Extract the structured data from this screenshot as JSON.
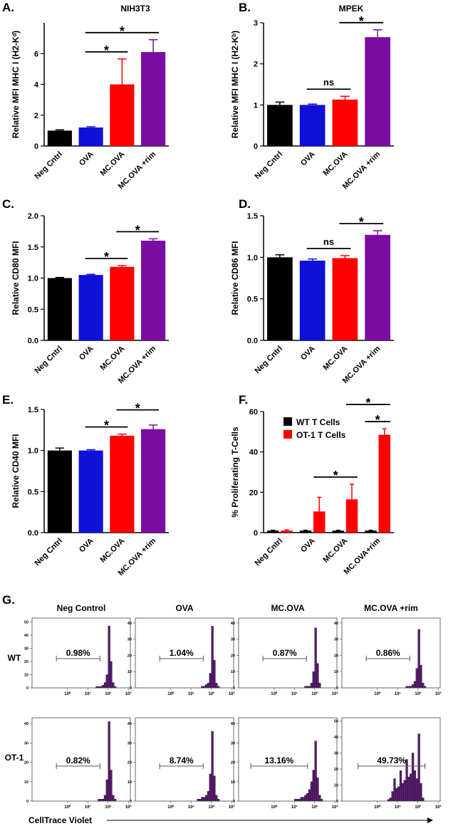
{
  "chart_data": [
    {
      "type": "bar",
      "panel_label": "A.",
      "title": "NIH3T3",
      "ylabel": "Relative MFI MHC I (H2-Kᵈ)",
      "categories": [
        "Neg Cntrl",
        "OVA",
        "MC.OVA",
        "MC.OVA +rim"
      ],
      "values": [
        1.0,
        1.2,
        4.0,
        6.1
      ],
      "errors": [
        0.05,
        0.05,
        1.65,
        0.8
      ],
      "colors": [
        "#000000",
        "#1010d8",
        "#ff0000",
        "#7b0ca3"
      ],
      "ylim": [
        0,
        8
      ],
      "yticks": [
        0,
        2,
        4,
        6
      ],
      "significance": [
        {
          "label": "*",
          "span": [
            1,
            2
          ]
        },
        {
          "label": "*",
          "span": [
            1,
            3
          ]
        }
      ]
    },
    {
      "type": "bar",
      "panel_label": "B.",
      "title": "MPEK",
      "ylabel": "Relative MFI MHC I (H2-Kᵇ)",
      "categories": [
        "Neg Cntrl",
        "OVA",
        "MC.OVA",
        "MC.OVA +rim"
      ],
      "values": [
        1.0,
        1.0,
        1.13,
        2.65
      ],
      "errors": [
        0.07,
        0.02,
        0.08,
        0.18
      ],
      "colors": [
        "#000000",
        "#1010d8",
        "#ff0000",
        "#7b0ca3"
      ],
      "ylim": [
        0,
        3
      ],
      "yticks": [
        0,
        1,
        2,
        3
      ],
      "significance": [
        {
          "label": "ns",
          "span": [
            1,
            2
          ]
        },
        {
          "label": "*",
          "span": [
            2,
            3
          ]
        }
      ]
    },
    {
      "type": "bar",
      "panel_label": "C.",
      "ylabel": "Relative CD80 MFI",
      "categories": [
        "Neg Cntrl",
        "OVA",
        "MC.OVA",
        "MC.OVA +rim"
      ],
      "values": [
        1.0,
        1.05,
        1.18,
        1.6
      ],
      "errors": [
        0.01,
        0.01,
        0.02,
        0.03
      ],
      "colors": [
        "#000000",
        "#1010d8",
        "#ff0000",
        "#7b0ca3"
      ],
      "ylim": [
        0,
        2
      ],
      "yticks": [
        {
          "value": 0,
          "label": "0.0"
        },
        {
          "value": 0.5,
          "label": "0.5"
        },
        {
          "value": 1,
          "label": "1.0"
        },
        {
          "value": 1.5,
          "label": "1.5"
        },
        {
          "value": 2,
          "label": "2.0"
        }
      ],
      "significance": [
        {
          "label": "*",
          "span": [
            1,
            2
          ]
        },
        {
          "label": "*",
          "span": [
            2,
            3
          ]
        }
      ]
    },
    {
      "type": "bar",
      "panel_label": "D.",
      "ylabel": "Relative CD86 MFI",
      "categories": [
        "Neg Cntrl",
        "OVA",
        "MC.OVA",
        "MC.OVA +rim"
      ],
      "values": [
        1.0,
        0.96,
        0.99,
        1.27
      ],
      "errors": [
        0.03,
        0.02,
        0.03,
        0.05
      ],
      "colors": [
        "#000000",
        "#1010d8",
        "#ff0000",
        "#7b0ca3"
      ],
      "ylim": [
        0,
        1.5
      ],
      "yticks": [
        {
          "value": 0,
          "label": "0.0"
        },
        {
          "value": 0.5,
          "label": "0.5"
        },
        {
          "value": 1,
          "label": "1.0"
        },
        {
          "value": 1.5,
          "label": "1.5"
        }
      ],
      "significance": [
        {
          "label": "ns",
          "span": [
            1,
            2
          ]
        },
        {
          "label": "*",
          "span": [
            2,
            3
          ]
        }
      ]
    },
    {
      "type": "bar",
      "panel_label": "E.",
      "ylabel": "Relative CD40 MFI",
      "categories": [
        "Neg Cntrl",
        "OVA",
        "MC.OVA",
        "MC.OVA +rim"
      ],
      "values": [
        1.0,
        1.0,
        1.18,
        1.26
      ],
      "errors": [
        0.03,
        0.01,
        0.02,
        0.05
      ],
      "colors": [
        "#000000",
        "#1010d8",
        "#ff0000",
        "#7b0ca3"
      ],
      "ylim": [
        0,
        1.5
      ],
      "yticks": [
        {
          "value": 0,
          "label": "0.0"
        },
        {
          "value": 0.5,
          "label": "0.5"
        },
        {
          "value": 1,
          "label": "1.0"
        },
        {
          "value": 1.5,
          "label": "1.5"
        }
      ],
      "significance": [
        {
          "label": "*",
          "span": [
            1,
            2
          ]
        },
        {
          "label": "*",
          "span": [
            2,
            3
          ]
        }
      ]
    },
    {
      "type": "bar",
      "panel_label": "F.",
      "ylabel": "% Proliferating  T-Cells",
      "categories": [
        "Neg Cntrl",
        "OVA",
        "MC.OVA",
        "MC.OVA+rim"
      ],
      "series": [
        {
          "name": "WT T Cells",
          "color": "#000000",
          "values": [
            1,
            1,
            1,
            1
          ],
          "errors": [
            0.2,
            0.2,
            0.2,
            0.2
          ]
        },
        {
          "name": "OT-1 T Cells",
          "color": "#ff0000",
          "values": [
            1,
            10.5,
            16.5,
            48.5
          ],
          "errors": [
            0.4,
            7,
            7.5,
            3
          ]
        }
      ],
      "ylim": [
        0,
        60
      ],
      "yticks": [
        0,
        20,
        40,
        60
      ],
      "legend": "upper left",
      "significance": [
        {
          "label": "*",
          "span": [
            1,
            2
          ],
          "series": [
            1,
            1
          ]
        },
        {
          "label": "*",
          "span": [
            3,
            3
          ],
          "series": [
            0,
            1
          ]
        },
        {
          "label": "*",
          "span": [
            2,
            3
          ],
          "series": [
            1,
            1
          ]
        }
      ]
    },
    {
      "type": "histogram",
      "gate": {
        "label": "0.98%",
        "range": [
          -0.55,
          1.6
        ]
      },
      "bins": [
        0.5,
        0.6,
        0.7,
        0.8,
        0.9,
        1.0,
        1.1,
        1.2,
        1.3,
        1.4,
        1.5,
        1.6,
        1.7,
        1.8,
        1.9,
        2.0,
        2.1,
        2.2,
        2.3,
        2.4,
        2.5,
        2.6,
        2.7,
        2.8,
        2.9
      ],
      "values": [
        0,
        0,
        0,
        0,
        0,
        0,
        0,
        0,
        0,
        1,
        1,
        1,
        2,
        4,
        10,
        47,
        20,
        4,
        1,
        0,
        0,
        0,
        0,
        0
      ],
      "color": "#5b1b73",
      "xlim": [
        -1.75,
        3.1
      ],
      "xticks": [
        {
          "value": 0,
          "label": "10⁰"
        },
        {
          "value": 1,
          "label": "10¹"
        },
        {
          "value": 2,
          "label": "10²"
        },
        {
          "value": 3,
          "label": "10³"
        }
      ],
      "ylim": [
        0,
        53
      ],
      "yticks": [
        0,
        10,
        20,
        30,
        40,
        50
      ]
    },
    {
      "type": "histogram",
      "gate": {
        "label": "1.04%",
        "range": [
          -0.55,
          1.6
        ]
      },
      "bins": [
        0.5,
        0.6,
        0.7,
        0.8,
        0.9,
        1.0,
        1.1,
        1.2,
        1.3,
        1.4,
        1.5,
        1.6,
        1.7,
        1.8,
        1.9,
        2.0,
        2.1,
        2.2,
        2.3,
        2.4,
        2.5,
        2.6,
        2.7,
        2.8,
        2.9
      ],
      "values": [
        0,
        0,
        0,
        0,
        0,
        0,
        0,
        0,
        0,
        0,
        1,
        1,
        2,
        3,
        9,
        38,
        17,
        3,
        1,
        0,
        0,
        0,
        0,
        0
      ],
      "color": "#5b1b73",
      "xlim": [
        -1.75,
        3.1
      ],
      "xticks": [
        {
          "value": 0,
          "label": "10⁰"
        },
        {
          "value": 1,
          "label": "10¹"
        },
        {
          "value": 2,
          "label": "10²"
        },
        {
          "value": 3,
          "label": "10³"
        }
      ],
      "ylim": [
        0,
        43
      ],
      "yticks": [
        0,
        10,
        20,
        30,
        40
      ]
    },
    {
      "type": "histogram",
      "gate": {
        "label": "0.87%",
        "range": [
          -0.55,
          1.6
        ]
      },
      "bins": [
        0.5,
        0.6,
        0.7,
        0.8,
        0.9,
        1.0,
        1.1,
        1.2,
        1.3,
        1.4,
        1.5,
        1.6,
        1.7,
        1.8,
        1.9,
        2.0,
        2.1,
        2.2,
        2.3,
        2.4,
        2.5,
        2.6,
        2.7,
        2.8,
        2.9
      ],
      "values": [
        0,
        0,
        0,
        0,
        0,
        0,
        0,
        0,
        0,
        0,
        1,
        1,
        1,
        3,
        10,
        37,
        15,
        3,
        0,
        0,
        0,
        0,
        0,
        0
      ],
      "color": "#5b1b73",
      "xlim": [
        -1.75,
        3.1
      ],
      "xticks": [
        {
          "value": 0,
          "label": "10⁰"
        },
        {
          "value": 1,
          "label": "10¹"
        },
        {
          "value": 2,
          "label": "10²"
        },
        {
          "value": 3,
          "label": "10³"
        }
      ],
      "ylim": [
        0,
        43
      ],
      "yticks": [
        0,
        10,
        20,
        30,
        40
      ]
    },
    {
      "type": "histogram",
      "gate": {
        "label": "0.86%",
        "range": [
          -0.55,
          1.6
        ]
      },
      "bins": [
        0.5,
        0.6,
        0.7,
        0.8,
        0.9,
        1.0,
        1.1,
        1.2,
        1.3,
        1.4,
        1.5,
        1.6,
        1.7,
        1.8,
        1.9,
        2.0,
        2.1,
        2.2,
        2.3,
        2.4,
        2.5,
        2.6,
        2.7,
        2.8,
        2.9
      ],
      "values": [
        0,
        0,
        0,
        0,
        0,
        0,
        0,
        0,
        0,
        1,
        1,
        1,
        2,
        4,
        12,
        36,
        14,
        3,
        1,
        0,
        0,
        0,
        0,
        0
      ],
      "color": "#5b1b73",
      "xlim": [
        -1.75,
        3.1
      ],
      "xticks": [
        {
          "value": 0,
          "label": "10⁰"
        },
        {
          "value": 1,
          "label": "10¹"
        },
        {
          "value": 2,
          "label": "10²"
        },
        {
          "value": 3,
          "label": "10³"
        }
      ],
      "ylim": [
        0,
        43
      ],
      "yticks": [
        0,
        10,
        20,
        30,
        40
      ]
    },
    {
      "type": "histogram",
      "gate": {
        "label": "0.82%",
        "range": [
          -0.55,
          1.6
        ]
      },
      "bins": [
        0.5,
        0.6,
        0.7,
        0.8,
        0.9,
        1.0,
        1.1,
        1.2,
        1.3,
        1.4,
        1.5,
        1.6,
        1.7,
        1.8,
        1.9,
        2.0,
        2.1,
        2.2,
        2.3,
        2.4,
        2.5,
        2.6,
        2.7,
        2.8,
        2.9
      ],
      "values": [
        0,
        0,
        0,
        0,
        0,
        0,
        0,
        0,
        0,
        0,
        1,
        1,
        1,
        3,
        11,
        41,
        16,
        3,
        1,
        0,
        0,
        0,
        0,
        0
      ],
      "color": "#5b1b73",
      "xlim": [
        -1.75,
        3.1
      ],
      "xticks": [
        {
          "value": 0,
          "label": "10⁰"
        },
        {
          "value": 1,
          "label": "10¹"
        },
        {
          "value": 2,
          "label": "10²"
        },
        {
          "value": 3,
          "label": "10³"
        }
      ],
      "ylim": [
        0,
        43
      ],
      "yticks": [
        0,
        10,
        20,
        30,
        40
      ]
    },
    {
      "type": "histogram",
      "gate": {
        "label": "8.74%",
        "range": [
          -0.55,
          1.6
        ]
      },
      "bins": [
        0.5,
        0.6,
        0.7,
        0.8,
        0.9,
        1.0,
        1.1,
        1.2,
        1.3,
        1.4,
        1.5,
        1.6,
        1.7,
        1.8,
        1.9,
        2.0,
        2.1,
        2.2,
        2.3,
        2.4,
        2.5,
        2.6,
        2.7,
        2.8,
        2.9
      ],
      "values": [
        0,
        0,
        0,
        0,
        0,
        0,
        0,
        0,
        1,
        1,
        2,
        2,
        3,
        5,
        14,
        36,
        13,
        3,
        1,
        0,
        0,
        0,
        0,
        0
      ],
      "color": "#5b1b73",
      "xlim": [
        -1.75,
        3.1
      ],
      "xticks": [
        {
          "value": 0,
          "label": "10⁰"
        },
        {
          "value": 1,
          "label": "10¹"
        },
        {
          "value": 2,
          "label": "10²"
        },
        {
          "value": 3,
          "label": "10³"
        }
      ],
      "ylim": [
        0,
        43
      ],
      "yticks": [
        0,
        10,
        20,
        30,
        40
      ]
    },
    {
      "type": "histogram",
      "gate": {
        "label": "13.16%",
        "range": [
          -1.15,
          1.65
        ]
      },
      "bins": [
        0.5,
        0.6,
        0.7,
        0.8,
        0.9,
        1.0,
        1.1,
        1.2,
        1.3,
        1.4,
        1.5,
        1.6,
        1.7,
        1.8,
        1.9,
        2.0,
        2.1,
        2.2,
        2.3,
        2.4,
        2.5,
        2.6,
        2.7,
        2.8,
        2.9
      ],
      "values": [
        0,
        0,
        0,
        0,
        0,
        1,
        1,
        1,
        2,
        2,
        3,
        4,
        6,
        10,
        16,
        31,
        12,
        3,
        1,
        0,
        0,
        0,
        0,
        0
      ],
      "color": "#5b1b73",
      "xlim": [
        -1.75,
        3.1
      ],
      "xticks": [
        {
          "value": 0,
          "label": "10⁰"
        },
        {
          "value": 1,
          "label": "10¹"
        },
        {
          "value": 2,
          "label": "10²"
        },
        {
          "value": 3,
          "label": "10³"
        }
      ],
      "ylim": [
        0,
        43
      ],
      "yticks": [
        0,
        10,
        20,
        30,
        40
      ]
    },
    {
      "type": "histogram",
      "gate": {
        "label": "49.73%",
        "range": [
          -0.95,
          2.35
        ]
      },
      "bins": [
        0.5,
        0.6,
        0.7,
        0.8,
        0.9,
        1.0,
        1.1,
        1.2,
        1.3,
        1.4,
        1.5,
        1.6,
        1.7,
        1.8,
        1.9,
        2.0,
        2.1,
        2.2,
        2.3,
        2.4,
        2.5,
        2.6,
        2.7,
        2.8,
        2.9
      ],
      "values": [
        1,
        2,
        6,
        14,
        8,
        9,
        19,
        11,
        13,
        26,
        15,
        17,
        30,
        19,
        14,
        42,
        11,
        2,
        0,
        0,
        0,
        0,
        0,
        0
      ],
      "color": "#5b1b73",
      "xlim": [
        -1.75,
        3.1
      ],
      "xticks": [
        {
          "value": 0,
          "label": "10⁰"
        },
        {
          "value": 1,
          "label": "10¹"
        },
        {
          "value": 2,
          "label": "10²"
        },
        {
          "value": 3,
          "label": "10³"
        }
      ],
      "ylim": [
        0,
        52
      ],
      "yticks": [
        0,
        10,
        20,
        30,
        40,
        50
      ]
    }
  ],
  "figure_g": {
    "panel_label": "G.",
    "columns": [
      "Neg Control",
      "OVA",
      "MC.OVA",
      "MC.OVA +rim"
    ],
    "rows": [
      "WT",
      "OT-1"
    ],
    "xlabel": "CellTrace Violet"
  }
}
